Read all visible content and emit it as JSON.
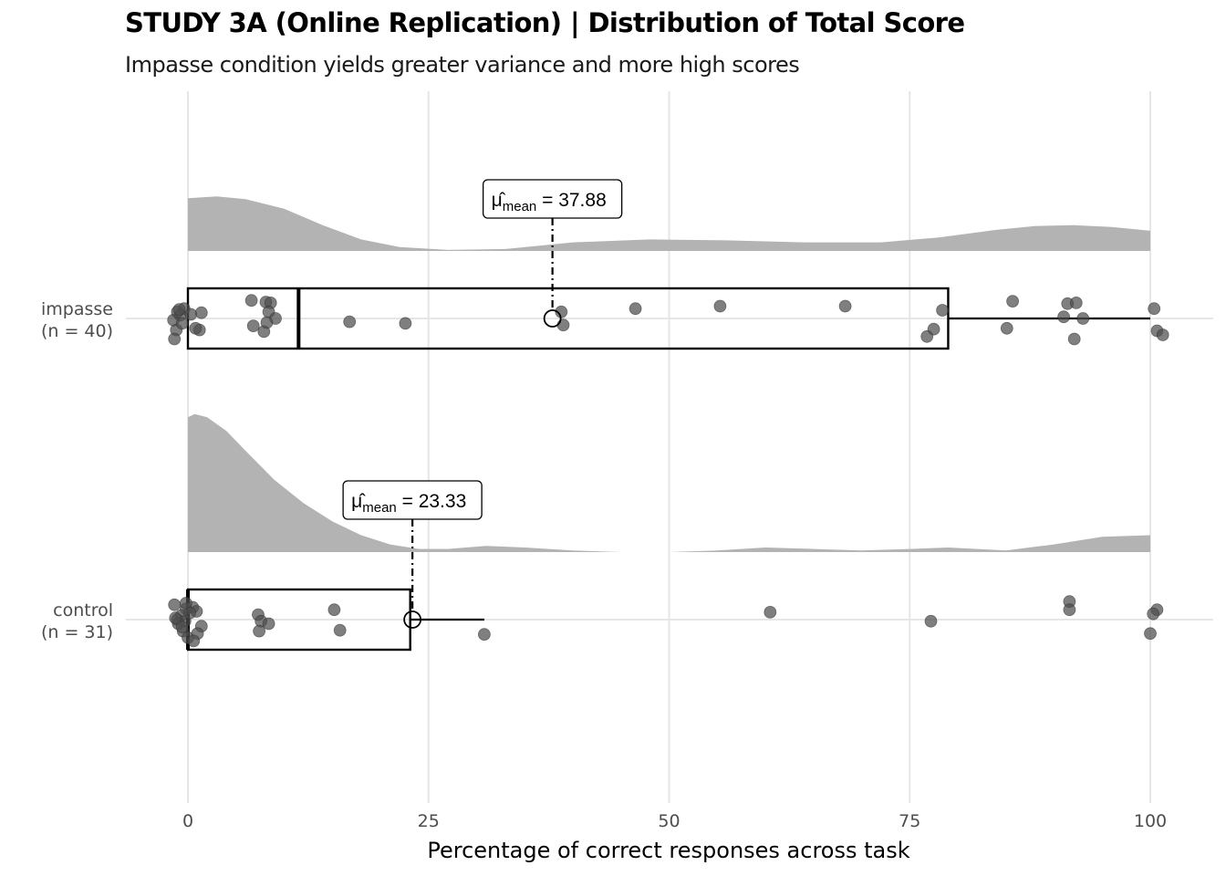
{
  "chart_data": {
    "type": "raincloud",
    "title": "STUDY 3A (Online Replication) | Distribution of Total Score",
    "subtitle": "Impasse condition yields greater variance and more high scores",
    "xlabel": "Percentage of correct responses across task",
    "ylabel": "",
    "xlim": [
      0,
      100
    ],
    "x_ticks": [
      0,
      25,
      50,
      75,
      100
    ],
    "grid": true,
    "colors": {
      "density": "#b3b3b3",
      "points": "#4d4d4d",
      "box": "#000000",
      "grid": "#e6e6e6"
    },
    "groups": [
      {
        "name": "impasse",
        "n_label": "(n = 40)",
        "mean": 37.88,
        "mean_label": "= 37.88",
        "mean_subscript": "mean",
        "box": {
          "q1": 0,
          "median": 11.5,
          "q3": 79,
          "whisker_low": 0,
          "whisker_high": 100
        },
        "density": [
          [
            0,
            0.55
          ],
          [
            3,
            0.57
          ],
          [
            6,
            0.54
          ],
          [
            10,
            0.44
          ],
          [
            14,
            0.27
          ],
          [
            18,
            0.12
          ],
          [
            22,
            0.04
          ],
          [
            27,
            0.01
          ],
          [
            33,
            0.02
          ],
          [
            40,
            0.09
          ],
          [
            48,
            0.12
          ],
          [
            56,
            0.11
          ],
          [
            64,
            0.09
          ],
          [
            72,
            0.09
          ],
          [
            78,
            0.14
          ],
          [
            84,
            0.22
          ],
          [
            88,
            0.26
          ],
          [
            92,
            0.27
          ],
          [
            96,
            0.25
          ],
          [
            100,
            0.21
          ]
        ],
        "points": [
          [
            -1.2,
            -0.14
          ],
          [
            -0.4,
            0.12
          ],
          [
            -1.5,
            -0.02
          ],
          [
            -0.8,
            0.04
          ],
          [
            0.3,
            0.05
          ],
          [
            -1.1,
            0.08
          ],
          [
            -1.4,
            -0.25
          ],
          [
            1.2,
            -0.14
          ],
          [
            1.4,
            0.07
          ],
          [
            0.8,
            -0.12
          ],
          [
            6.6,
            0.22
          ],
          [
            8.1,
            0.2
          ],
          [
            8.6,
            0.19
          ],
          [
            8.4,
            0.08
          ],
          [
            6.8,
            -0.09
          ],
          [
            7.9,
            -0.16
          ],
          [
            9.1,
            0.0
          ],
          [
            8.2,
            -0.05
          ],
          [
            16.8,
            -0.04
          ],
          [
            22.6,
            -0.06
          ],
          [
            38.8,
            0.08
          ],
          [
            39.0,
            -0.08
          ],
          [
            46.5,
            0.12
          ],
          [
            55.3,
            0.15
          ],
          [
            68.3,
            0.15
          ],
          [
            78.4,
            0.1
          ],
          [
            77.5,
            -0.13
          ],
          [
            76.8,
            -0.22
          ],
          [
            85.7,
            0.21
          ],
          [
            85.1,
            -0.12
          ],
          [
            91.4,
            0.18
          ],
          [
            92.3,
            0.19
          ],
          [
            91.0,
            0.02
          ],
          [
            93.0,
            0.0
          ],
          [
            92.1,
            -0.25
          ],
          [
            100.4,
            0.12
          ],
          [
            100.7,
            -0.15
          ],
          [
            101.3,
            -0.2
          ],
          [
            -0.9,
            0.11
          ],
          [
            -0.6,
            -0.06
          ]
        ]
      },
      {
        "name": "control",
        "n_label": "(n = 31)",
        "mean": 23.33,
        "mean_label": "= 23.33",
        "mean_subscript": "mean",
        "box": {
          "q1": 0,
          "median": 0,
          "q3": 23.1,
          "whisker_low": 0,
          "whisker_high": 30.8
        },
        "density": [
          [
            0,
            0.88
          ],
          [
            0.7,
            0.9
          ],
          [
            2,
            0.88
          ],
          [
            4,
            0.79
          ],
          [
            6,
            0.66
          ],
          [
            9,
            0.47
          ],
          [
            12,
            0.32
          ],
          [
            15,
            0.2
          ],
          [
            18,
            0.11
          ],
          [
            21,
            0.05
          ],
          [
            24,
            0.02
          ],
          [
            27,
            0.02
          ],
          [
            31,
            0.04
          ],
          [
            35,
            0.03
          ],
          [
            40,
            0.01
          ],
          [
            45,
            0.0
          ],
          [
            50,
            0.0
          ],
          [
            55,
            0.01
          ],
          [
            60,
            0.03
          ],
          [
            65,
            0.02
          ],
          [
            70,
            0.01
          ],
          [
            75,
            0.02
          ],
          [
            79,
            0.03
          ],
          [
            85,
            0.01
          ],
          [
            90,
            0.05
          ],
          [
            95,
            0.1
          ],
          [
            100,
            0.11
          ]
        ],
        "points": [
          [
            -1.4,
            0.18
          ],
          [
            -0.2,
            0.13
          ],
          [
            -0.7,
            0.05
          ],
          [
            -1.1,
            0.0
          ],
          [
            -0.3,
            -0.02
          ],
          [
            -1.0,
            -0.05
          ],
          [
            -0.5,
            -0.14
          ],
          [
            0.0,
            -0.22
          ],
          [
            0.5,
            0.15
          ],
          [
            0.9,
            0.1
          ],
          [
            1.4,
            -0.08
          ],
          [
            1.0,
            -0.17
          ],
          [
            0.6,
            -0.26
          ],
          [
            -0.2,
            0.2
          ],
          [
            7.3,
            0.06
          ],
          [
            7.6,
            -0.02
          ],
          [
            8.4,
            -0.05
          ],
          [
            7.4,
            -0.14
          ],
          [
            15.2,
            0.12
          ],
          [
            15.8,
            -0.13
          ],
          [
            30.8,
            -0.18
          ],
          [
            60.5,
            0.09
          ],
          [
            77.2,
            -0.02
          ],
          [
            91.6,
            0.22
          ],
          [
            91.6,
            0.12
          ],
          [
            100.7,
            0.12
          ],
          [
            100.3,
            0.07
          ],
          [
            100.0,
            -0.17
          ],
          [
            -1.3,
            0.02
          ],
          [
            0.2,
            0.08
          ],
          [
            -0.6,
            -0.09
          ]
        ]
      }
    ]
  }
}
